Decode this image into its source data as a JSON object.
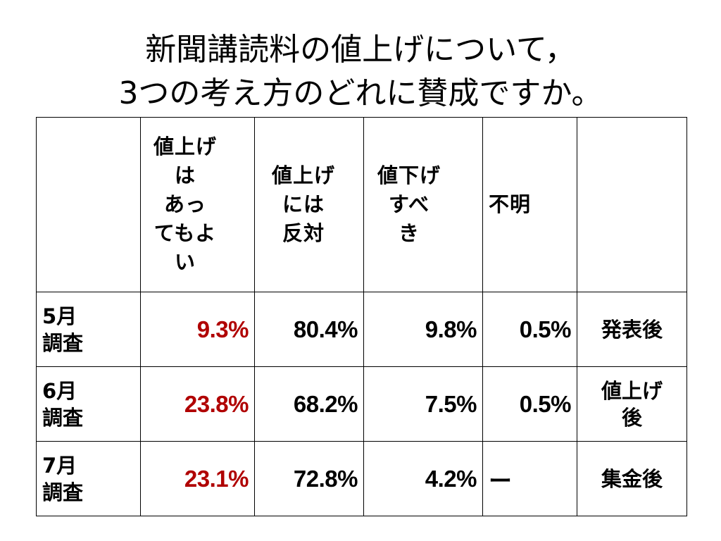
{
  "title": {
    "line1": "新聞講読料の値上げについて，",
    "line2": "3つの考え方のどれに賛成ですか。"
  },
  "table": {
    "headers": [
      "",
      "値上げ\nは\nあっ\nてもよ\nい",
      "値上げ\nには\n反対",
      "値下げ\nすべ\nき",
      "不明",
      ""
    ],
    "rows": [
      {
        "label": "5月\n調査",
        "values": [
          "9.3%",
          "80.4%",
          "9.8%",
          "0.5%"
        ],
        "note": "発表後"
      },
      {
        "label": "6月\n調査",
        "values": [
          "23.8%",
          "68.2%",
          "7.5%",
          "0.5%"
        ],
        "note": "値上げ\n後"
      },
      {
        "label": "7月\n調査",
        "values": [
          "23.1%",
          "72.8%",
          "4.2%",
          "ー"
        ],
        "note": "集金後"
      }
    ]
  },
  "colors": {
    "highlight": "#b00000",
    "text": "#000000",
    "border": "#000000"
  }
}
